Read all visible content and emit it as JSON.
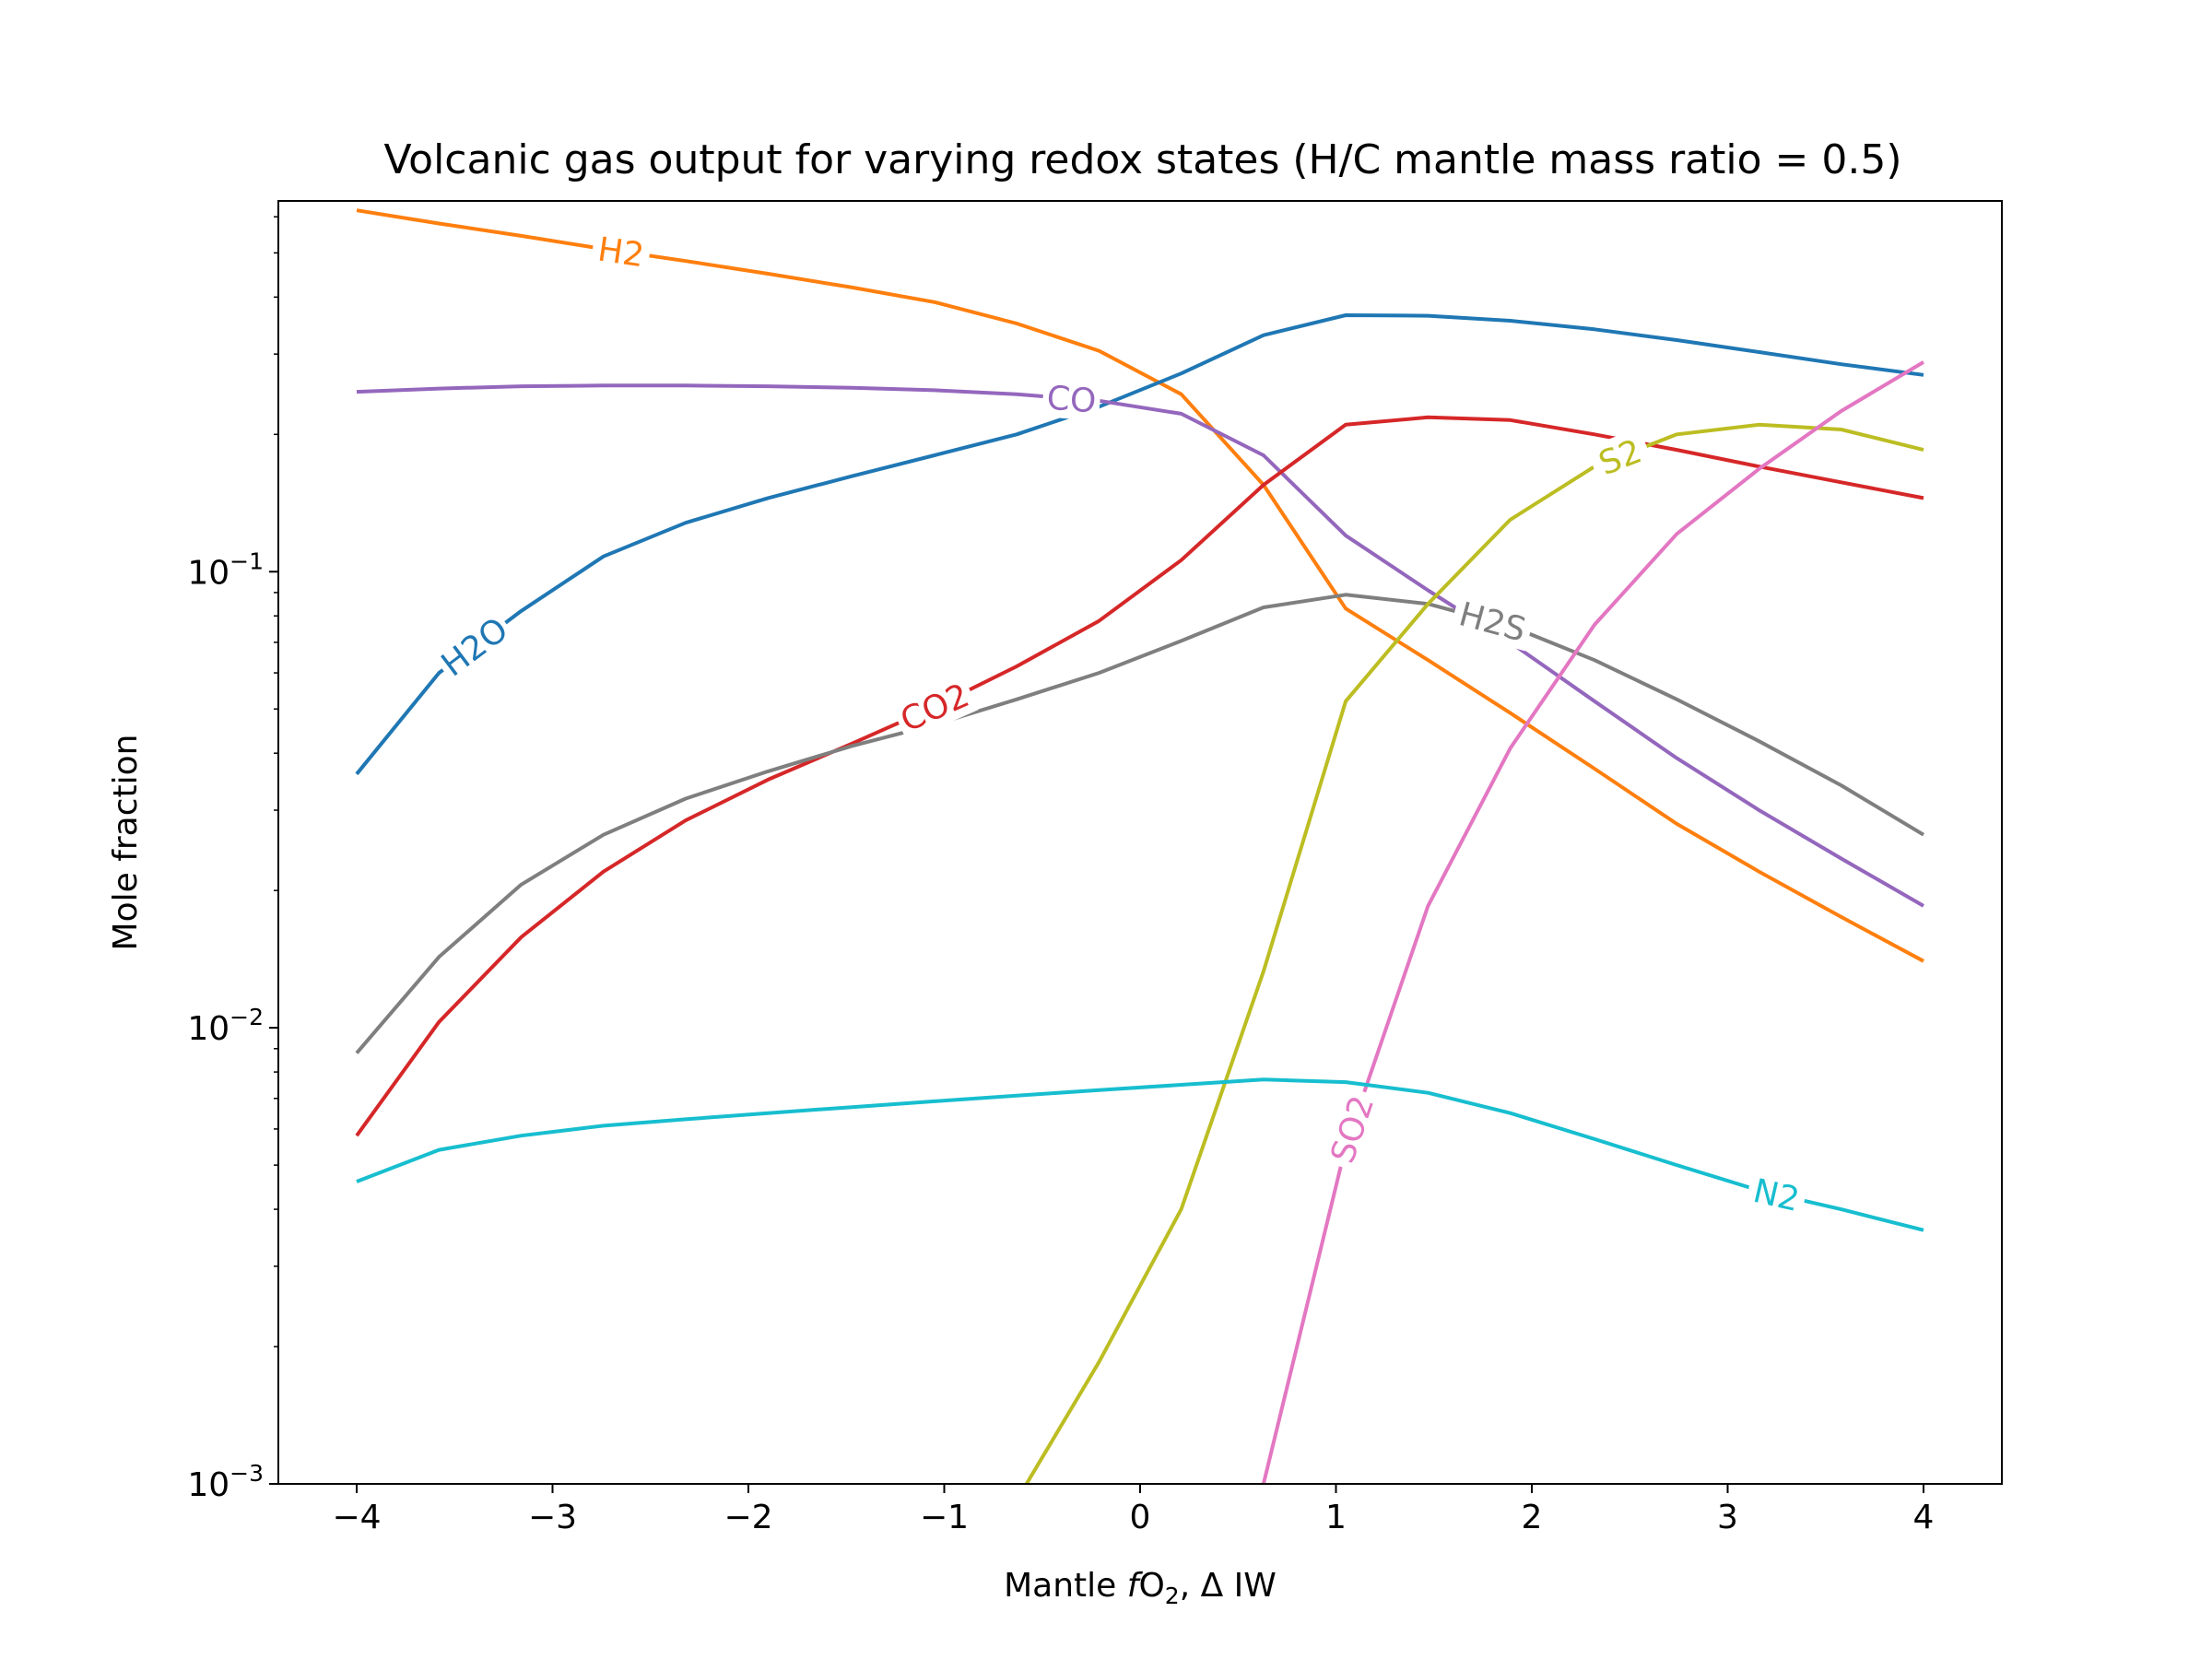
{
  "chart_data": {
    "type": "line",
    "title": "Volcanic gas output for varying redox states (H/C mantle mass ratio = 0.5)",
    "xlabel": {
      "prefix": "Mantle ",
      "italic": "f",
      "main": "O",
      "sub": "2",
      "suffix": ", Δ IW"
    },
    "ylabel": "Mole fraction",
    "yscale": "log",
    "xlim": [
      -4.4,
      4.4
    ],
    "ylim": [
      0.001,
      0.65
    ],
    "x_ticks": [
      {
        "value": -4,
        "label": "−4"
      },
      {
        "value": -3,
        "label": "−3"
      },
      {
        "value": -2,
        "label": "−2"
      },
      {
        "value": -1,
        "label": "−1"
      },
      {
        "value": 0,
        "label": "0"
      },
      {
        "value": 1,
        "label": "1"
      },
      {
        "value": 2,
        "label": "2"
      },
      {
        "value": 3,
        "label": "3"
      },
      {
        "value": 4,
        "label": "4"
      }
    ],
    "y_ticks": [
      {
        "value": 0.1,
        "base": "10",
        "exp": "−1"
      },
      {
        "value": 0.01,
        "base": "10",
        "exp": "−2"
      },
      {
        "value": 0.001,
        "base": "10",
        "exp": "−3"
      }
    ],
    "x": [
      -4.0,
      -3.58,
      -3.16,
      -2.74,
      -2.32,
      -1.9,
      -1.47,
      -1.05,
      -0.63,
      -0.21,
      0.21,
      0.63,
      1.05,
      1.47,
      1.89,
      2.32,
      2.74,
      3.16,
      3.58,
      4.0
    ],
    "series": [
      {
        "name": "H2",
        "color": "#ff7f0e",
        "label_x": -2.65,
        "values": [
          0.62,
          0.58,
          0.545,
          0.51,
          0.48,
          0.45,
          0.42,
          0.39,
          0.35,
          0.305,
          0.245,
          0.155,
          0.083,
          0.064,
          0.049,
          0.037,
          0.028,
          0.022,
          0.0175,
          0.014
        ]
      },
      {
        "name": "H2O",
        "color": "#1f77b4",
        "label_x": -3.4,
        "values": [
          0.036,
          0.06,
          0.082,
          0.108,
          0.128,
          0.145,
          0.162,
          0.18,
          0.2,
          0.23,
          0.272,
          0.33,
          0.365,
          0.364,
          0.355,
          0.34,
          0.322,
          0.303,
          0.285,
          0.27
        ]
      },
      {
        "name": "CO",
        "color": "#9467bd",
        "label_x": -0.35,
        "values": [
          0.248,
          0.252,
          0.255,
          0.256,
          0.256,
          0.255,
          0.253,
          0.25,
          0.245,
          0.237,
          0.222,
          0.18,
          0.12,
          0.091,
          0.07,
          0.052,
          0.039,
          0.03,
          0.0235,
          0.0185
        ]
      },
      {
        "name": "CO2",
        "color": "#d62728",
        "label_x": -1.05,
        "values": [
          0.0058,
          0.0103,
          0.0158,
          0.022,
          0.0285,
          0.035,
          0.042,
          0.0505,
          0.062,
          0.078,
          0.106,
          0.155,
          0.21,
          0.218,
          0.215,
          0.2,
          0.185,
          0.17,
          0.157,
          0.145
        ]
      },
      {
        "name": "H2S",
        "color": "#7f7f7f",
        "label_x": 1.8,
        "values": [
          0.0088,
          0.0143,
          0.0206,
          0.0265,
          0.0318,
          0.0365,
          0.0415,
          0.0462,
          0.0525,
          0.06,
          0.0705,
          0.0835,
          0.089,
          0.085,
          0.076,
          0.064,
          0.0525,
          0.0425,
          0.034,
          0.0265
        ]
      },
      {
        "name": "S2",
        "color": "#bcbd22",
        "label_x": 2.45,
        "values": [
          null,
          null,
          null,
          null,
          null,
          null,
          null,
          null,
          0.00092,
          0.00185,
          0.004,
          0.0133,
          0.052,
          0.085,
          0.13,
          0.17,
          0.2,
          0.21,
          0.205,
          0.185
        ]
      },
      {
        "name": "SO2",
        "color": "#e377c2",
        "label_x": 1.08,
        "values": [
          null,
          null,
          null,
          null,
          null,
          null,
          null,
          null,
          null,
          null,
          null,
          0.001,
          0.0055,
          0.0185,
          0.041,
          0.0765,
          0.121,
          0.168,
          0.225,
          0.288
        ]
      },
      {
        "name": "N2",
        "color": "#17becf",
        "label_x": 3.25,
        "values": [
          0.0046,
          0.0054,
          0.0058,
          0.0061,
          0.0063,
          0.0065,
          0.0067,
          0.0069,
          0.0071,
          0.0073,
          0.0075,
          0.0077,
          0.0076,
          0.0072,
          0.0065,
          0.0057,
          0.005,
          0.0044,
          0.004,
          0.0036
        ]
      }
    ]
  }
}
